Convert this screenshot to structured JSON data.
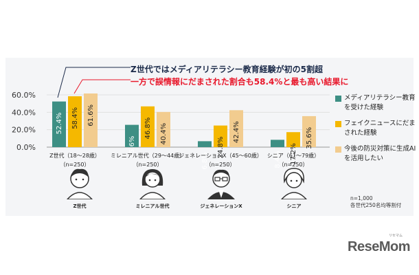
{
  "headline": {
    "line1": "Z世代ではメディアリテラシー教育経験が初の5割超",
    "line2": "一方で誤情報にだまされた割合も58.4%と最も高い結果に"
  },
  "colors": {
    "series1": "#3d8f84",
    "series2": "#f5b800",
    "series3": "#f2cc8f",
    "accent": "#e8182b"
  },
  "chart_data": {
    "type": "bar",
    "categories": [
      "Z世代（18～28歳）",
      "ミレニアル世代（29～44歳）",
      "ジェネレーションX（45～60歳）",
      "シニア（61～79歳）"
    ],
    "category_sub": [
      "（n=250）",
      "（n=250）",
      "（n=250）",
      "（n=250）"
    ],
    "series": [
      {
        "name": "メディアリテラシー教育を受けた経験",
        "values": [
          52.4,
          25.6,
          6.8,
          8.4
        ]
      },
      {
        "name": "フェイクニュースにだまされた経験",
        "values": [
          58.4,
          46.8,
          24.8,
          17.2
        ]
      },
      {
        "name": "今後の防災対策に生成AIを活用したい",
        "values": [
          61.6,
          40.4,
          42.4,
          35.6
        ]
      }
    ],
    "value_labels": [
      [
        "52.4%",
        "58.4%",
        "61.6%"
      ],
      [
        "25.6%",
        "46.8%",
        "40.4%"
      ],
      [
        "6.8%",
        "24.8%",
        "42.4%"
      ],
      [
        "8.4%",
        "17.2%",
        "35.6%"
      ]
    ],
    "yticks": [
      0,
      20,
      40,
      60
    ],
    "ytick_labels": [
      "0.0%",
      "20.0%",
      "40.0%",
      "60.0%"
    ],
    "ylim": [
      0,
      70
    ],
    "legend_position": "right"
  },
  "people": [
    {
      "label": "Z世代",
      "icon": "young-man-icon"
    },
    {
      "label": "ミレニアル世代",
      "icon": "woman-icon"
    },
    {
      "label": "ジェネレーションX",
      "icon": "man-glasses-icon"
    },
    {
      "label": "シニア",
      "icon": "senior-woman-icon"
    }
  ],
  "note": {
    "line1": "n=1,000",
    "line2": "各世代250名均等割付"
  },
  "logo": {
    "text": "ReseMom",
    "sub": "リセマム"
  }
}
